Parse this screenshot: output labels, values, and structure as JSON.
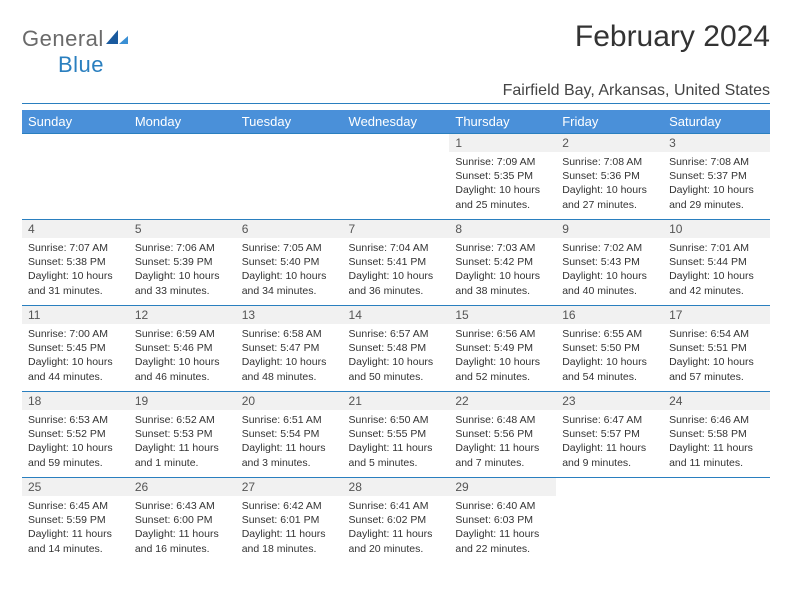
{
  "logo": {
    "part1": "General",
    "part2": "Blue"
  },
  "title": "February 2024",
  "location": "Fairfield Bay, Arkansas, United States",
  "header_bg": "#4a90d9",
  "accent": "#2a7fbf",
  "daynum_bg": "#f1f1f1",
  "weekdays": [
    "Sunday",
    "Monday",
    "Tuesday",
    "Wednesday",
    "Thursday",
    "Friday",
    "Saturday"
  ],
  "weeks": [
    [
      null,
      null,
      null,
      null,
      {
        "n": "1",
        "sunrise": "7:09 AM",
        "sunset": "5:35 PM",
        "daylight": "10 hours and 25 minutes."
      },
      {
        "n": "2",
        "sunrise": "7:08 AM",
        "sunset": "5:36 PM",
        "daylight": "10 hours and 27 minutes."
      },
      {
        "n": "3",
        "sunrise": "7:08 AM",
        "sunset": "5:37 PM",
        "daylight": "10 hours and 29 minutes."
      }
    ],
    [
      {
        "n": "4",
        "sunrise": "7:07 AM",
        "sunset": "5:38 PM",
        "daylight": "10 hours and 31 minutes."
      },
      {
        "n": "5",
        "sunrise": "7:06 AM",
        "sunset": "5:39 PM",
        "daylight": "10 hours and 33 minutes."
      },
      {
        "n": "6",
        "sunrise": "7:05 AM",
        "sunset": "5:40 PM",
        "daylight": "10 hours and 34 minutes."
      },
      {
        "n": "7",
        "sunrise": "7:04 AM",
        "sunset": "5:41 PM",
        "daylight": "10 hours and 36 minutes."
      },
      {
        "n": "8",
        "sunrise": "7:03 AM",
        "sunset": "5:42 PM",
        "daylight": "10 hours and 38 minutes."
      },
      {
        "n": "9",
        "sunrise": "7:02 AM",
        "sunset": "5:43 PM",
        "daylight": "10 hours and 40 minutes."
      },
      {
        "n": "10",
        "sunrise": "7:01 AM",
        "sunset": "5:44 PM",
        "daylight": "10 hours and 42 minutes."
      }
    ],
    [
      {
        "n": "11",
        "sunrise": "7:00 AM",
        "sunset": "5:45 PM",
        "daylight": "10 hours and 44 minutes."
      },
      {
        "n": "12",
        "sunrise": "6:59 AM",
        "sunset": "5:46 PM",
        "daylight": "10 hours and 46 minutes."
      },
      {
        "n": "13",
        "sunrise": "6:58 AM",
        "sunset": "5:47 PM",
        "daylight": "10 hours and 48 minutes."
      },
      {
        "n": "14",
        "sunrise": "6:57 AM",
        "sunset": "5:48 PM",
        "daylight": "10 hours and 50 minutes."
      },
      {
        "n": "15",
        "sunrise": "6:56 AM",
        "sunset": "5:49 PM",
        "daylight": "10 hours and 52 minutes."
      },
      {
        "n": "16",
        "sunrise": "6:55 AM",
        "sunset": "5:50 PM",
        "daylight": "10 hours and 54 minutes."
      },
      {
        "n": "17",
        "sunrise": "6:54 AM",
        "sunset": "5:51 PM",
        "daylight": "10 hours and 57 minutes."
      }
    ],
    [
      {
        "n": "18",
        "sunrise": "6:53 AM",
        "sunset": "5:52 PM",
        "daylight": "10 hours and 59 minutes."
      },
      {
        "n": "19",
        "sunrise": "6:52 AM",
        "sunset": "5:53 PM",
        "daylight": "11 hours and 1 minute."
      },
      {
        "n": "20",
        "sunrise": "6:51 AM",
        "sunset": "5:54 PM",
        "daylight": "11 hours and 3 minutes."
      },
      {
        "n": "21",
        "sunrise": "6:50 AM",
        "sunset": "5:55 PM",
        "daylight": "11 hours and 5 minutes."
      },
      {
        "n": "22",
        "sunrise": "6:48 AM",
        "sunset": "5:56 PM",
        "daylight": "11 hours and 7 minutes."
      },
      {
        "n": "23",
        "sunrise": "6:47 AM",
        "sunset": "5:57 PM",
        "daylight": "11 hours and 9 minutes."
      },
      {
        "n": "24",
        "sunrise": "6:46 AM",
        "sunset": "5:58 PM",
        "daylight": "11 hours and 11 minutes."
      }
    ],
    [
      {
        "n": "25",
        "sunrise": "6:45 AM",
        "sunset": "5:59 PM",
        "daylight": "11 hours and 14 minutes."
      },
      {
        "n": "26",
        "sunrise": "6:43 AM",
        "sunset": "6:00 PM",
        "daylight": "11 hours and 16 minutes."
      },
      {
        "n": "27",
        "sunrise": "6:42 AM",
        "sunset": "6:01 PM",
        "daylight": "11 hours and 18 minutes."
      },
      {
        "n": "28",
        "sunrise": "6:41 AM",
        "sunset": "6:02 PM",
        "daylight": "11 hours and 20 minutes."
      },
      {
        "n": "29",
        "sunrise": "6:40 AM",
        "sunset": "6:03 PM",
        "daylight": "11 hours and 22 minutes."
      },
      null,
      null
    ]
  ],
  "labels": {
    "sunrise": "Sunrise:",
    "sunset": "Sunset:",
    "daylight": "Daylight:"
  }
}
